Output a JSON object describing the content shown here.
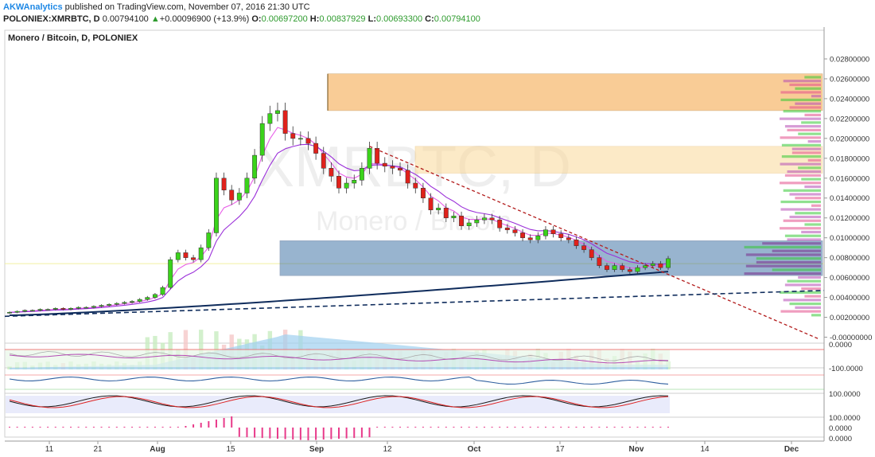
{
  "header": {
    "publisher": "AKWAnalytics",
    "published_text": "published on TradingView.com, November 07, 2016 21:30 UTC",
    "symbol": "POLONIEX:XMRBTC, D",
    "last": "0.00794100",
    "change": "+0.00096900 (+13.9%)",
    "o_label": "O:",
    "o_value": "0.00697200",
    "h_label": "H:",
    "h_value": "0.00837929",
    "l_label": "L:",
    "l_value": "0.00693300",
    "c_label": "C:",
    "c_value": "0.00794100"
  },
  "chart_title": "Monero / Bitcoin, D, POLONIEX",
  "watermark": {
    "line1": "XMRBTC, D",
    "line2": "Monero / Bitcoin"
  },
  "colors": {
    "up": "#3bd31b",
    "down": "#e0211b",
    "ema_fast": "#e85ee8",
    "ema_slow": "#9b30d9",
    "ma_long": "#0f2c5c",
    "resistance_zone": "#f5a442",
    "resistance_zone_light": "#fbd99a",
    "support_zone": "#1d5a96",
    "trendline_down": "#b21a1a",
    "trendline_up": "#0f2c5c",
    "volume": "#9fd0f0"
  },
  "chart_data": {
    "type": "line",
    "title": "Monero / Bitcoin, D, POLONIEX",
    "y_axis": {
      "range": [
        -0.0002,
        0.0288
      ],
      "ticks": [
        "0.02800000",
        "0.02600000",
        "0.02400000",
        "0.02200000",
        "0.02000000",
        "0.01800000",
        "0.01600000",
        "0.01400000",
        "0.01200000",
        "0.01000000",
        "0.00800000",
        "0.00600000",
        "0.00400000",
        "0.00200000",
        "-0.00000000"
      ]
    },
    "x_axis": {
      "ticks": [
        "11",
        "21",
        "Aug",
        "15",
        "Sep",
        "12",
        "Oct",
        "17",
        "Nov",
        "14",
        "Dec"
      ]
    },
    "series": [
      {
        "role": "close",
        "values": [
          0.0025,
          0.0026,
          0.0027,
          0.0027,
          0.0028,
          0.0028,
          0.0029,
          0.0028,
          0.0029,
          0.003,
          0.003,
          0.0031,
          0.0032,
          0.0033,
          0.0034,
          0.0035,
          0.0036,
          0.0038,
          0.004,
          0.0043,
          0.005,
          0.0078,
          0.0085,
          0.008,
          0.0078,
          0.009,
          0.0105,
          0.016,
          0.0148,
          0.0138,
          0.0145,
          0.016,
          0.0183,
          0.0215,
          0.0225,
          0.0228,
          0.0205,
          0.02,
          0.02,
          0.0195,
          0.0185,
          0.017,
          0.0162,
          0.015,
          0.0155,
          0.0158,
          0.017,
          0.019,
          0.0175,
          0.0172,
          0.017,
          0.0168,
          0.0155,
          0.015,
          0.014,
          0.0128,
          0.013,
          0.012,
          0.0122,
          0.0112,
          0.0115,
          0.0118,
          0.012,
          0.0118,
          0.011,
          0.0108,
          0.0105,
          0.01,
          0.0098,
          0.0102,
          0.0108,
          0.0104,
          0.01,
          0.0098,
          0.0092,
          0.0088,
          0.008,
          0.0072,
          0.0068,
          0.0072,
          0.0068,
          0.0066,
          0.007,
          0.0072,
          0.0074,
          0.007,
          0.0079
        ]
      }
    ]
  }
}
